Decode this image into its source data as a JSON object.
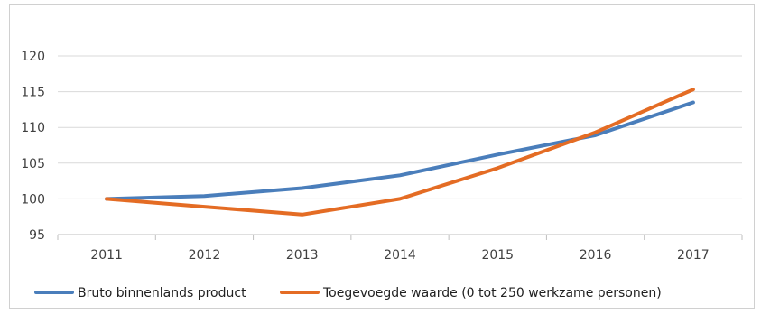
{
  "chart_data": {
    "type": "line",
    "title": "",
    "xlabel": "",
    "ylabel": "",
    "categories": [
      "2011",
      "2012",
      "2013",
      "2014",
      "2015",
      "2016",
      "2017"
    ],
    "ylim": [
      95,
      120
    ],
    "yticks": [
      95,
      100,
      105,
      110,
      115,
      120
    ],
    "grid": true,
    "legend_position": "bottom",
    "series": [
      {
        "name": "Bruto binnenlands product",
        "color": "#4a7ebb",
        "values": [
          100.0,
          100.4,
          101.5,
          103.3,
          106.2,
          108.9,
          113.5
        ]
      },
      {
        "name": "Toegevoegde waarde (0 tot 250 werkzame personen)",
        "color": "#e46c24",
        "values": [
          100.0,
          98.9,
          97.8,
          100.0,
          104.3,
          109.3,
          115.3
        ]
      }
    ]
  }
}
